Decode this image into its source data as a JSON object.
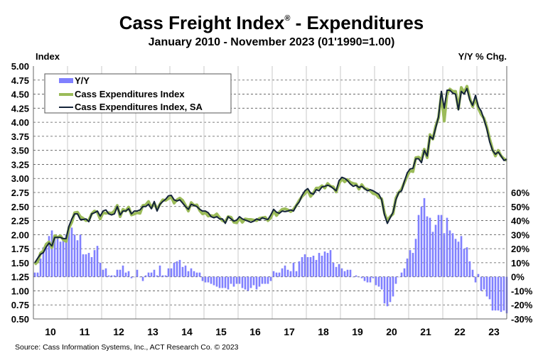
{
  "chart_data": {
    "type": "bar+line",
    "title": "Cass Freight Index",
    "title_reg": "®",
    "title_suffix": " - Expenditures",
    "subtitle": "January 2010 - November 2023 (01'1990=1.00)",
    "ylabel_left": "Index",
    "ylabel_right": "Y/Y % Chg.",
    "ylim_left": [
      0.5,
      5.0
    ],
    "ylim_right": [
      -30,
      150
    ],
    "left_ticks": [
      "5.00",
      "4.75",
      "4.50",
      "4.25",
      "4.00",
      "3.75",
      "3.50",
      "3.25",
      "3.00",
      "2.75",
      "2.50",
      "2.25",
      "2.00",
      "1.75",
      "1.50",
      "1.25",
      "1.00",
      "0.75",
      "0.50"
    ],
    "right_ticks": [
      "60%",
      "50%",
      "40%",
      "30%",
      "20%",
      "10%",
      "0%",
      "-10%",
      "-20%",
      "-30%"
    ],
    "x_tick_labels": [
      "10",
      "11",
      "12",
      "13",
      "14",
      "15",
      "16",
      "17",
      "18",
      "19",
      "20",
      "21",
      "22",
      "23"
    ],
    "start": "2010-01",
    "end": "2023-11",
    "grid": true,
    "legend_position": "top-left",
    "source": "Source: Cass Information Systems, Inc., ACT Research Co. © 2023",
    "colors": {
      "yy": "#8080ff",
      "nsa": "#9bbb59",
      "sa": "#14233a"
    },
    "series": [
      {
        "name": "Y/Y",
        "kind": "bar",
        "axis": "right",
        "values": [
          3,
          3,
          13,
          21,
          24,
          29,
          33,
          29,
          29,
          25,
          26,
          30,
          34,
          35,
          30,
          26,
          30,
          16,
          16,
          17,
          14,
          19,
          22,
          10,
          5,
          6,
          1,
          1,
          1,
          5,
          5,
          8,
          3,
          4,
          -1,
          0,
          5,
          0,
          -3,
          1,
          3,
          3,
          5,
          1,
          8,
          1,
          1,
          6,
          6,
          10,
          11,
          12,
          7,
          8,
          4,
          6,
          4,
          3,
          3,
          -3,
          -4,
          -4,
          -5,
          -6,
          -7,
          -8,
          -8,
          -8,
          -9,
          -5,
          -7,
          -5,
          -5,
          -8,
          -9,
          -10,
          -8,
          -6,
          -9,
          -7,
          -5,
          -5,
          -5,
          -3,
          4,
          3,
          3,
          6,
          8,
          5,
          4,
          10,
          4,
          11,
          14,
          16,
          14,
          14,
          15,
          12,
          17,
          15,
          18,
          17,
          19,
          10,
          7,
          9,
          6,
          4,
          5,
          5,
          0,
          1,
          0,
          -1,
          -3,
          -4,
          -4,
          -1,
          -6,
          -7,
          -9,
          -19,
          -21,
          -18,
          -14,
          -5,
          0,
          3,
          6,
          13,
          19,
          17,
          27,
          44,
          50,
          56,
          43,
          42,
          32,
          37,
          44,
          44,
          31,
          42,
          33,
          31,
          27,
          25,
          29,
          20,
          21,
          11,
          5,
          -4,
          2,
          -10,
          -9,
          -14,
          -16,
          -24,
          -24,
          -24,
          -25,
          -24,
          -26
        ]
      },
      {
        "name": "Cass Expenditures Index",
        "kind": "line",
        "axis": "left",
        "values": [
          1.47,
          1.52,
          1.67,
          1.71,
          1.83,
          1.87,
          1.77,
          1.98,
          1.95,
          1.98,
          1.91,
          1.88,
          2.12,
          2.22,
          2.39,
          2.4,
          2.32,
          2.29,
          2.25,
          2.26,
          2.37,
          2.42,
          2.4,
          2.28,
          2.39,
          2.38,
          2.39,
          2.38,
          2.42,
          2.52,
          2.32,
          2.45,
          2.42,
          2.49,
          2.35,
          2.37,
          2.39,
          2.38,
          2.52,
          2.53,
          2.59,
          2.48,
          2.56,
          2.45,
          2.54,
          2.62,
          2.61,
          2.64,
          2.67,
          2.56,
          2.62,
          2.65,
          2.61,
          2.52,
          2.42,
          2.57,
          2.52,
          2.53,
          2.43,
          2.37,
          2.39,
          2.33,
          2.34,
          2.33,
          2.37,
          2.3,
          2.25,
          2.23,
          2.32,
          2.31,
          2.22,
          2.21,
          2.29,
          2.22,
          2.28,
          2.27,
          2.27,
          2.26,
          2.25,
          2.29,
          2.3,
          2.31,
          2.25,
          2.3,
          2.42,
          2.34,
          2.4,
          2.45,
          2.46,
          2.44,
          2.41,
          2.45,
          2.52,
          2.61,
          2.68,
          2.73,
          2.79,
          2.68,
          2.74,
          2.83,
          2.83,
          2.87,
          2.83,
          2.91,
          2.86,
          2.85,
          2.76,
          2.91,
          2.99,
          2.94,
          2.98,
          2.93,
          2.91,
          2.9,
          2.81,
          2.89,
          2.82,
          2.81,
          2.78,
          2.73,
          2.72,
          2.66,
          2.64,
          2.38,
          2.25,
          2.32,
          2.37,
          2.65,
          2.75,
          2.81,
          2.93,
          3.05,
          3.14,
          3.12,
          3.37,
          3.38,
          3.33,
          3.52,
          3.37,
          3.78,
          3.7,
          3.93,
          4.08,
          4.5,
          4.02,
          4.51,
          4.59,
          4.55,
          4.55,
          4.24,
          4.62,
          4.53,
          4.64,
          4.43,
          4.28,
          4.43,
          4.25,
          4.14,
          4.07,
          3.91,
          3.7,
          3.52,
          3.4,
          3.5,
          3.4,
          3.35,
          3.32
        ]
      },
      {
        "name": "Cass Expenditures Index, SA",
        "kind": "line",
        "axis": "left",
        "values": [
          1.5,
          1.58,
          1.65,
          1.68,
          1.78,
          1.85,
          1.8,
          1.95,
          1.95,
          1.95,
          1.93,
          1.93,
          2.15,
          2.28,
          2.37,
          2.37,
          2.27,
          2.27,
          2.28,
          2.23,
          2.37,
          2.39,
          2.42,
          2.33,
          2.42,
          2.44,
          2.37,
          2.35,
          2.37,
          2.5,
          2.35,
          2.42,
          2.42,
          2.46,
          2.37,
          2.42,
          2.42,
          2.44,
          2.5,
          2.5,
          2.54,
          2.46,
          2.59,
          2.42,
          2.54,
          2.59,
          2.63,
          2.69,
          2.7,
          2.62,
          2.6,
          2.62,
          2.56,
          2.5,
          2.45,
          2.54,
          2.52,
          2.5,
          2.45,
          2.42,
          2.42,
          2.39,
          2.32,
          2.3,
          2.32,
          2.28,
          2.28,
          2.2,
          2.32,
          2.28,
          2.24,
          2.26,
          2.32,
          2.28,
          2.26,
          2.24,
          2.22,
          2.24,
          2.28,
          2.26,
          2.3,
          2.28,
          2.27,
          2.35,
          2.45,
          2.4,
          2.38,
          2.42,
          2.41,
          2.42,
          2.44,
          2.42,
          2.52,
          2.58,
          2.7,
          2.78,
          2.82,
          2.74,
          2.72,
          2.8,
          2.78,
          2.85,
          2.86,
          2.88,
          2.86,
          2.82,
          2.78,
          2.96,
          3.02,
          3.0,
          2.96,
          2.9,
          2.86,
          2.88,
          2.84,
          2.86,
          2.82,
          2.78,
          2.8,
          2.78,
          2.75,
          2.72,
          2.62,
          2.35,
          2.2,
          2.3,
          2.4,
          2.62,
          2.75,
          2.78,
          2.95,
          3.1,
          3.17,
          3.18,
          3.35,
          3.35,
          3.28,
          3.5,
          3.4,
          3.75,
          3.7,
          3.9,
          4.1,
          4.55,
          4.25,
          4.57,
          4.57,
          4.52,
          4.5,
          4.22,
          4.55,
          4.5,
          4.6,
          4.4,
          4.3,
          4.48,
          4.28,
          4.2,
          4.05,
          3.88,
          3.65,
          3.5,
          3.43,
          3.47,
          3.4,
          3.32,
          3.34
        ]
      }
    ]
  }
}
